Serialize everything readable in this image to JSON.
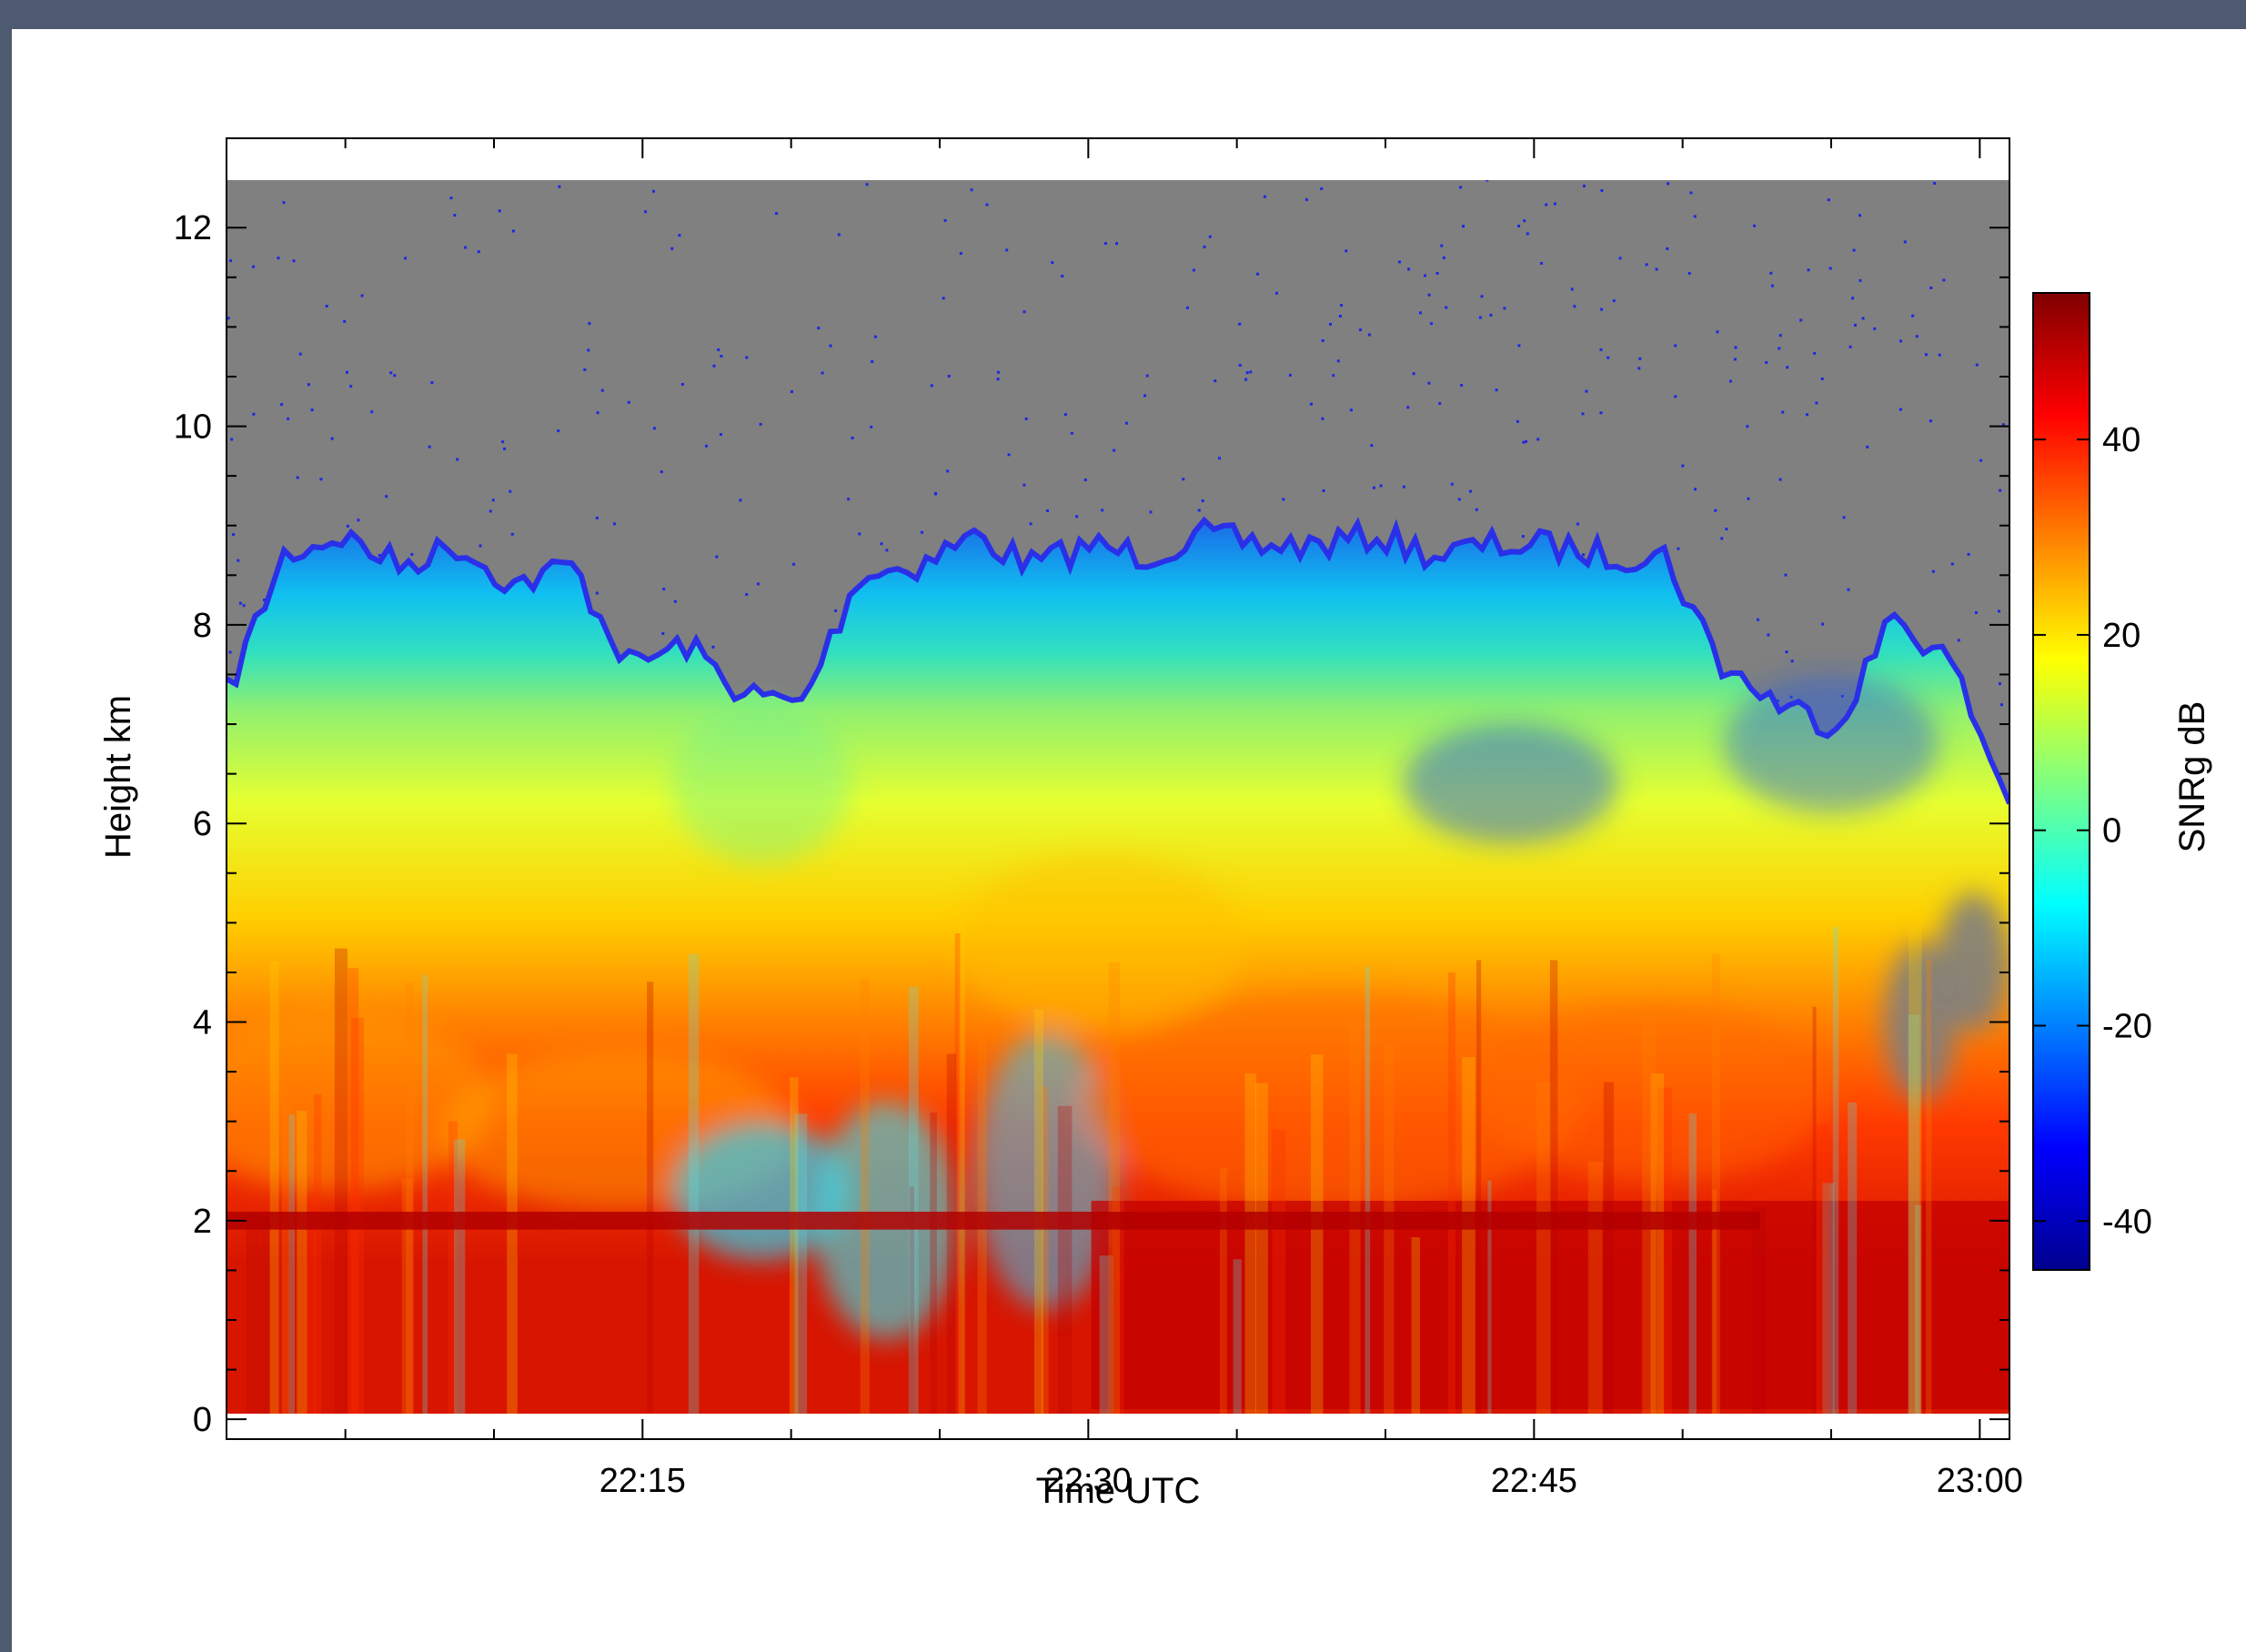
{
  "chart_data": {
    "type": "heatmap",
    "title": "",
    "xlabel": "Time UTC",
    "ylabel": "Height km",
    "colorbar_label": "SNRg dB",
    "x_ticks": [
      "22:15",
      "22:30",
      "22:45",
      "23:00"
    ],
    "x_range": [
      "22:01",
      "23:01"
    ],
    "y_ticks": [
      0,
      2,
      4,
      6,
      8,
      10,
      12
    ],
    "y_range": [
      -0.2,
      12.9
    ],
    "colorbar_ticks": [
      40,
      20,
      0,
      -20,
      -40
    ],
    "colorbar_range": [
      -45,
      55
    ],
    "no_data_color": "#808080",
    "noise_color": "#1f28e0",
    "echo_top_km": [
      7.3,
      8.7,
      8.9,
      8.6,
      8.8,
      8.4,
      8.6,
      7.6,
      7.8,
      7.3,
      7.2,
      8.5,
      8.6,
      8.9,
      8.6,
      8.8,
      8.7,
      8.9,
      8.8,
      8.8,
      8.9,
      8.7,
      8.8,
      8.8,
      8.7,
      8.7,
      7.6,
      7.2,
      7.0,
      8.1,
      7.6,
      6.2
    ],
    "bright_band_km": 2.0
  }
}
